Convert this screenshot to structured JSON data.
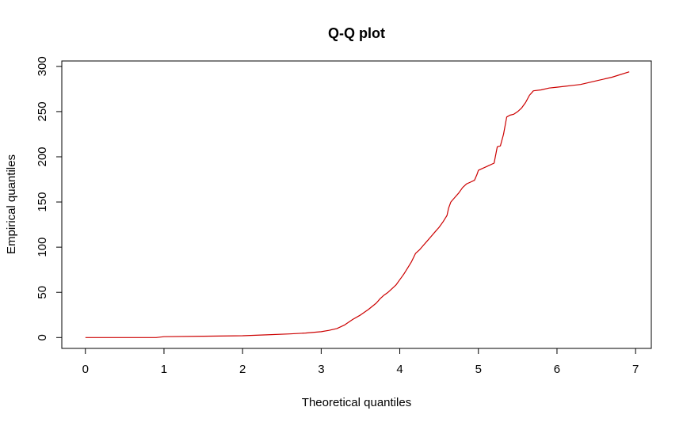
{
  "chart_data": {
    "type": "line",
    "title": "Q-Q plot",
    "xlabel": "Theoretical quantiles",
    "ylabel": "Empirical quantiles",
    "xlim": [
      -0.3,
      7.2
    ],
    "ylim": [
      -12,
      306
    ],
    "x_ticks": [
      0,
      1,
      2,
      3,
      4,
      5,
      6,
      7
    ],
    "y_ticks": [
      0,
      50,
      100,
      150,
      200,
      250,
      300
    ],
    "grid": false,
    "series": [
      {
        "color": "#cc0000",
        "x": [
          0,
          0.9,
          1.0,
          1.5,
          2.0,
          2.3,
          2.6,
          2.8,
          3.0,
          3.1,
          3.2,
          3.3,
          3.4,
          3.5,
          3.6,
          3.7,
          3.75,
          3.8,
          3.85,
          3.9,
          3.95,
          4.0,
          4.05,
          4.1,
          4.15,
          4.2,
          4.25,
          4.3,
          4.35,
          4.4,
          4.45,
          4.5,
          4.55,
          4.6,
          4.62,
          4.65,
          4.7,
          4.75,
          4.8,
          4.85,
          4.9,
          4.95,
          4.98,
          5.0,
          5.05,
          5.1,
          5.15,
          5.2,
          5.24,
          5.28,
          5.32,
          5.36,
          5.4,
          5.45,
          5.5,
          5.55,
          5.6,
          5.65,
          5.7,
          5.8,
          5.9,
          6.0,
          6.1,
          6.2,
          6.3,
          6.5,
          6.7,
          6.92
        ],
        "y": [
          0,
          0,
          1,
          1.5,
          2,
          3,
          4,
          5,
          6.5,
          8,
          10,
          14,
          20,
          25,
          31,
          38,
          43,
          47,
          50,
          54,
          58,
          64,
          70,
          77,
          84,
          93,
          97,
          102,
          107,
          112,
          117,
          122,
          128,
          135,
          143,
          150,
          155,
          160,
          166,
          170,
          172,
          174,
          180,
          185,
          187,
          189,
          191,
          193,
          211,
          212,
          225,
          244,
          246,
          247,
          250,
          254,
          260,
          268,
          273,
          274,
          276,
          277,
          278,
          279,
          280,
          284,
          288,
          294
        ]
      }
    ]
  }
}
